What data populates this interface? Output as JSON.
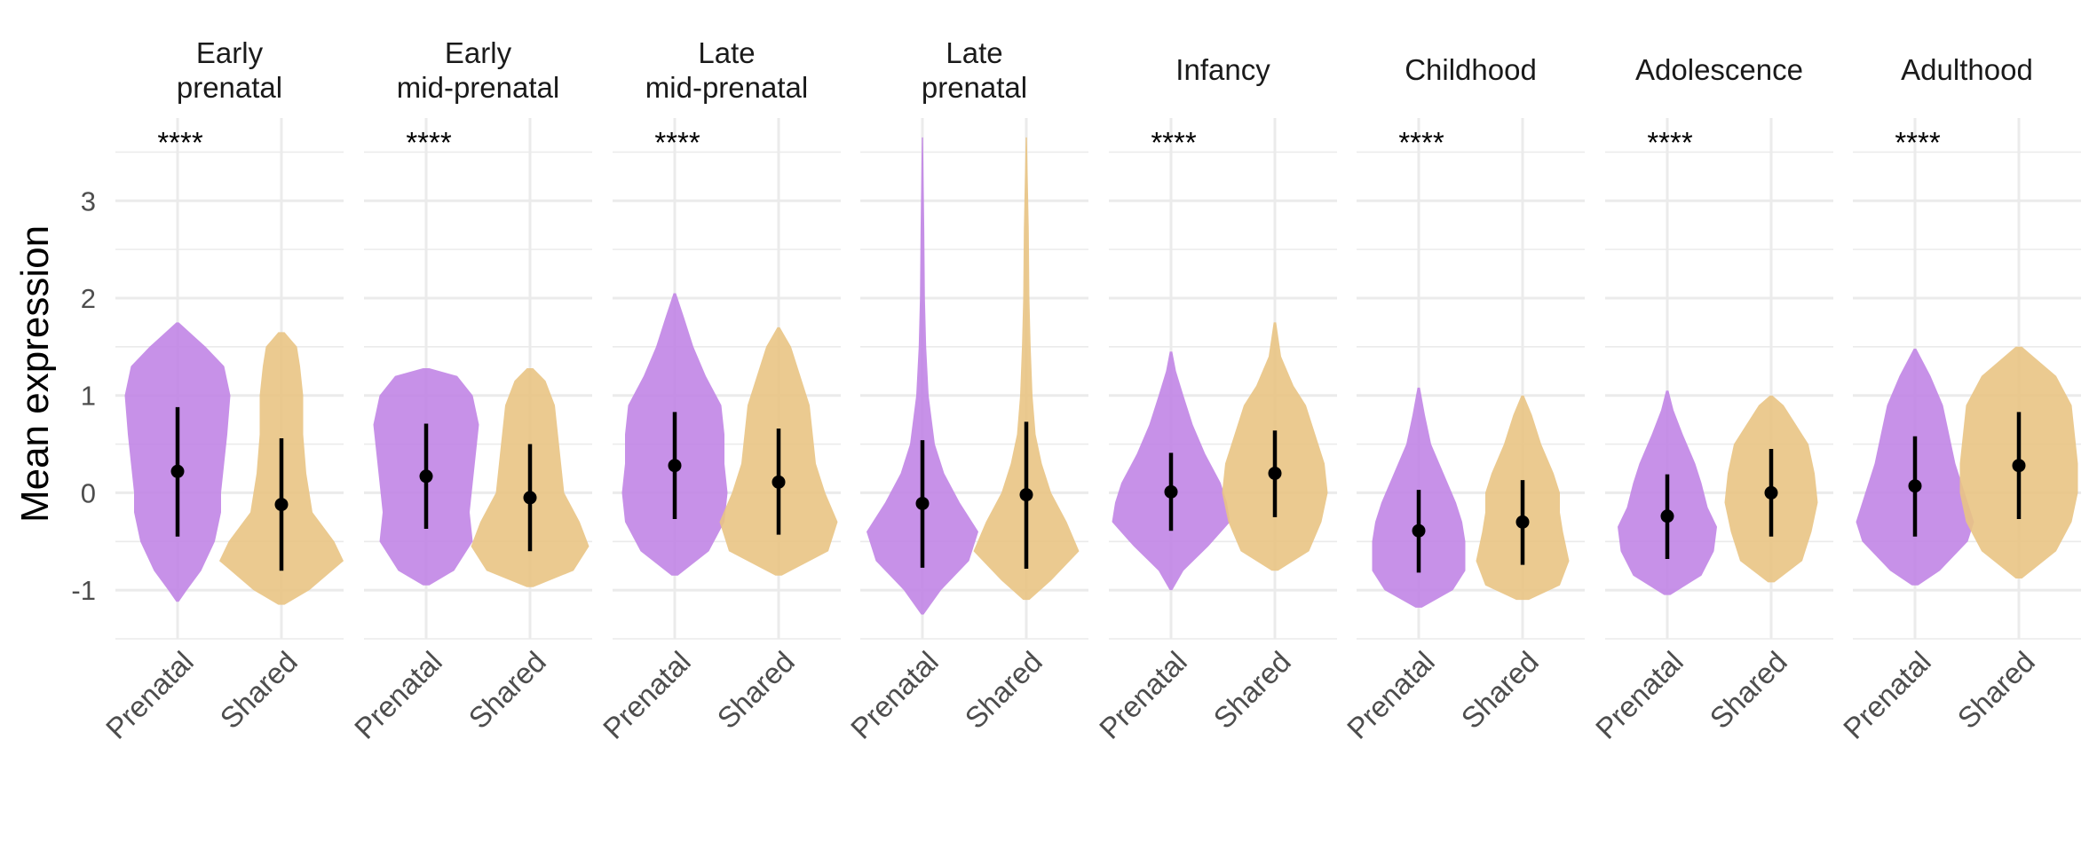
{
  "chart_data": {
    "type": "violin",
    "ylabel": "Mean expression",
    "xlabel": "",
    "ylim": [
      -1.5,
      3.85
    ],
    "yticks": [
      -1,
      0,
      1,
      2,
      3
    ],
    "ytick_labels": [
      "-1",
      "0",
      "1",
      "2",
      "3"
    ],
    "grid": true,
    "groups": [
      "Prenatal",
      "Shared"
    ],
    "colors": {
      "Prenatal": "#c185e6",
      "Shared": "#e9c484",
      "point": "#000000",
      "grid": "#ebebeb"
    },
    "significance_label": "****",
    "panels": [
      {
        "title": [
          "Early",
          "prenatal"
        ],
        "significance": "****",
        "violins": [
          {
            "group": "Prenatal",
            "median": 0.22,
            "range": [
              -0.45,
              0.88
            ],
            "profile": [
              [
                -1.12,
                0.02
              ],
              [
                -1.0,
                0.15
              ],
              [
                -0.8,
                0.38
              ],
              [
                -0.5,
                0.6
              ],
              [
                -0.2,
                0.7
              ],
              [
                0.0,
                0.7
              ],
              [
                0.3,
                0.75
              ],
              [
                0.6,
                0.8
              ],
              [
                1.0,
                0.85
              ],
              [
                1.3,
                0.75
              ],
              [
                1.5,
                0.45
              ],
              [
                1.75,
                0.02
              ]
            ]
          },
          {
            "group": "Shared",
            "median": -0.12,
            "range": [
              -0.8,
              0.56
            ],
            "profile": [
              [
                -1.15,
                0.05
              ],
              [
                -1.0,
                0.45
              ],
              [
                -0.7,
                1.0
              ],
              [
                -0.5,
                0.85
              ],
              [
                -0.2,
                0.5
              ],
              [
                0.2,
                0.4
              ],
              [
                0.6,
                0.35
              ],
              [
                1.0,
                0.35
              ],
              [
                1.3,
                0.3
              ],
              [
                1.5,
                0.25
              ],
              [
                1.65,
                0.05
              ]
            ]
          }
        ]
      },
      {
        "title": [
          "Early",
          "mid-prenatal"
        ],
        "significance": "****",
        "violins": [
          {
            "group": "Prenatal",
            "median": 0.17,
            "range": [
              -0.37,
              0.71
            ],
            "profile": [
              [
                -0.95,
                0.05
              ],
              [
                -0.8,
                0.45
              ],
              [
                -0.5,
                0.75
              ],
              [
                -0.2,
                0.7
              ],
              [
                0.1,
                0.75
              ],
              [
                0.4,
                0.8
              ],
              [
                0.7,
                0.85
              ],
              [
                1.0,
                0.75
              ],
              [
                1.2,
                0.5
              ],
              [
                1.28,
                0.05
              ]
            ]
          },
          {
            "group": "Shared",
            "median": -0.05,
            "range": [
              -0.6,
              0.5
            ],
            "profile": [
              [
                -0.97,
                0.05
              ],
              [
                -0.8,
                0.7
              ],
              [
                -0.55,
                0.95
              ],
              [
                -0.3,
                0.8
              ],
              [
                0.0,
                0.55
              ],
              [
                0.3,
                0.5
              ],
              [
                0.6,
                0.45
              ],
              [
                0.9,
                0.4
              ],
              [
                1.15,
                0.25
              ],
              [
                1.28,
                0.05
              ]
            ]
          }
        ]
      },
      {
        "title": [
          "Late",
          "mid-prenatal"
        ],
        "significance": "****",
        "violins": [
          {
            "group": "Prenatal",
            "median": 0.28,
            "range": [
              -0.27,
              0.83
            ],
            "profile": [
              [
                -0.85,
                0.05
              ],
              [
                -0.6,
                0.55
              ],
              [
                -0.3,
                0.8
              ],
              [
                0.0,
                0.85
              ],
              [
                0.3,
                0.8
              ],
              [
                0.6,
                0.8
              ],
              [
                0.9,
                0.75
              ],
              [
                1.2,
                0.5
              ],
              [
                1.5,
                0.3
              ],
              [
                1.8,
                0.15
              ],
              [
                2.05,
                0.02
              ]
            ]
          },
          {
            "group": "Shared",
            "median": 0.11,
            "range": [
              -0.43,
              0.66
            ],
            "profile": [
              [
                -0.85,
                0.05
              ],
              [
                -0.6,
                0.8
              ],
              [
                -0.3,
                0.95
              ],
              [
                0.0,
                0.75
              ],
              [
                0.3,
                0.6
              ],
              [
                0.6,
                0.55
              ],
              [
                0.9,
                0.5
              ],
              [
                1.2,
                0.35
              ],
              [
                1.5,
                0.2
              ],
              [
                1.7,
                0.02
              ]
            ]
          }
        ]
      },
      {
        "title": [
          "Late",
          "prenatal"
        ],
        "significance": "",
        "violins": [
          {
            "group": "Prenatal",
            "median": -0.11,
            "range": [
              -0.77,
              0.54
            ],
            "profile": [
              [
                -1.25,
                0.02
              ],
              [
                -1.0,
                0.3
              ],
              [
                -0.7,
                0.75
              ],
              [
                -0.4,
                0.9
              ],
              [
                -0.1,
                0.6
              ],
              [
                0.2,
                0.35
              ],
              [
                0.5,
                0.2
              ],
              [
                1.0,
                0.1
              ],
              [
                1.5,
                0.06
              ],
              [
                2.0,
                0.04
              ],
              [
                2.7,
                0.03
              ],
              [
                3.65,
                0.01
              ]
            ]
          },
          {
            "group": "Shared",
            "median": -0.02,
            "range": [
              -0.78,
              0.73
            ],
            "profile": [
              [
                -1.1,
                0.05
              ],
              [
                -0.9,
                0.4
              ],
              [
                -0.6,
                0.85
              ],
              [
                -0.3,
                0.65
              ],
              [
                0.0,
                0.4
              ],
              [
                0.3,
                0.25
              ],
              [
                0.6,
                0.15
              ],
              [
                1.0,
                0.1
              ],
              [
                1.5,
                0.07
              ],
              [
                2.0,
                0.05
              ],
              [
                2.7,
                0.04
              ],
              [
                3.65,
                0.01
              ]
            ]
          }
        ]
      },
      {
        "title": [
          "Infancy"
        ],
        "significance": "****",
        "violins": [
          {
            "group": "Prenatal",
            "median": 0.01,
            "range": [
              -0.39,
              0.41
            ],
            "profile": [
              [
                -1.0,
                0.02
              ],
              [
                -0.8,
                0.2
              ],
              [
                -0.55,
                0.6
              ],
              [
                -0.3,
                0.95
              ],
              [
                -0.1,
                0.9
              ],
              [
                0.1,
                0.8
              ],
              [
                0.4,
                0.55
              ],
              [
                0.7,
                0.35
              ],
              [
                1.0,
                0.2
              ],
              [
                1.25,
                0.08
              ],
              [
                1.45,
                0.02
              ]
            ]
          },
          {
            "group": "Shared",
            "median": 0.2,
            "range": [
              -0.25,
              0.64
            ],
            "profile": [
              [
                -0.8,
                0.05
              ],
              [
                -0.6,
                0.55
              ],
              [
                -0.3,
                0.75
              ],
              [
                0.0,
                0.85
              ],
              [
                0.3,
                0.8
              ],
              [
                0.6,
                0.65
              ],
              [
                0.9,
                0.5
              ],
              [
                1.1,
                0.3
              ],
              [
                1.4,
                0.1
              ],
              [
                1.75,
                0.02
              ]
            ]
          }
        ]
      },
      {
        "title": [
          "Childhood"
        ],
        "significance": "****",
        "violins": [
          {
            "group": "Prenatal",
            "median": -0.39,
            "range": [
              -0.82,
              0.03
            ],
            "profile": [
              [
                -1.18,
                0.05
              ],
              [
                -1.0,
                0.55
              ],
              [
                -0.8,
                0.75
              ],
              [
                -0.5,
                0.75
              ],
              [
                -0.3,
                0.7
              ],
              [
                -0.1,
                0.6
              ],
              [
                0.2,
                0.4
              ],
              [
                0.5,
                0.2
              ],
              [
                0.8,
                0.1
              ],
              [
                1.08,
                0.02
              ]
            ]
          },
          {
            "group": "Shared",
            "median": -0.3,
            "range": [
              -0.74,
              0.13
            ],
            "profile": [
              [
                -1.1,
                0.1
              ],
              [
                -0.95,
                0.6
              ],
              [
                -0.7,
                0.75
              ],
              [
                -0.4,
                0.65
              ],
              [
                -0.2,
                0.6
              ],
              [
                0.0,
                0.6
              ],
              [
                0.2,
                0.5
              ],
              [
                0.5,
                0.3
              ],
              [
                0.8,
                0.15
              ],
              [
                1.0,
                0.02
              ]
            ]
          }
        ]
      },
      {
        "title": [
          "Adolescence"
        ],
        "significance": "****",
        "violins": [
          {
            "group": "Prenatal",
            "median": -0.24,
            "range": [
              -0.68,
              0.19
            ],
            "profile": [
              [
                -1.05,
                0.05
              ],
              [
                -0.85,
                0.55
              ],
              [
                -0.6,
                0.75
              ],
              [
                -0.35,
                0.8
              ],
              [
                -0.15,
                0.65
              ],
              [
                0.1,
                0.55
              ],
              [
                0.3,
                0.45
              ],
              [
                0.6,
                0.25
              ],
              [
                0.85,
                0.1
              ],
              [
                1.05,
                0.02
              ]
            ]
          },
          {
            "group": "Shared",
            "median": 0.0,
            "range": [
              -0.45,
              0.45
            ],
            "profile": [
              [
                -0.92,
                0.05
              ],
              [
                -0.7,
                0.5
              ],
              [
                -0.4,
                0.65
              ],
              [
                -0.1,
                0.75
              ],
              [
                0.2,
                0.7
              ],
              [
                0.5,
                0.6
              ],
              [
                0.7,
                0.4
              ],
              [
                0.9,
                0.2
              ],
              [
                1.0,
                0.02
              ]
            ]
          }
        ]
      },
      {
        "title": [
          "Adulthood"
        ],
        "significance": "****",
        "violins": [
          {
            "group": "Prenatal",
            "median": 0.07,
            "range": [
              -0.45,
              0.58
            ],
            "profile": [
              [
                -0.95,
                0.05
              ],
              [
                -0.8,
                0.4
              ],
              [
                -0.5,
                0.85
              ],
              [
                -0.3,
                0.95
              ],
              [
                0.0,
                0.8
              ],
              [
                0.3,
                0.65
              ],
              [
                0.6,
                0.55
              ],
              [
                0.9,
                0.45
              ],
              [
                1.2,
                0.25
              ],
              [
                1.48,
                0.02
              ]
            ]
          },
          {
            "group": "Shared",
            "median": 0.28,
            "range": [
              -0.27,
              0.83
            ],
            "profile": [
              [
                -0.88,
                0.05
              ],
              [
                -0.6,
                0.6
              ],
              [
                -0.3,
                0.85
              ],
              [
                0.0,
                0.95
              ],
              [
                0.3,
                0.95
              ],
              [
                0.6,
                0.9
              ],
              [
                0.9,
                0.85
              ],
              [
                1.2,
                0.6
              ],
              [
                1.5,
                0.05
              ]
            ]
          }
        ]
      }
    ]
  }
}
